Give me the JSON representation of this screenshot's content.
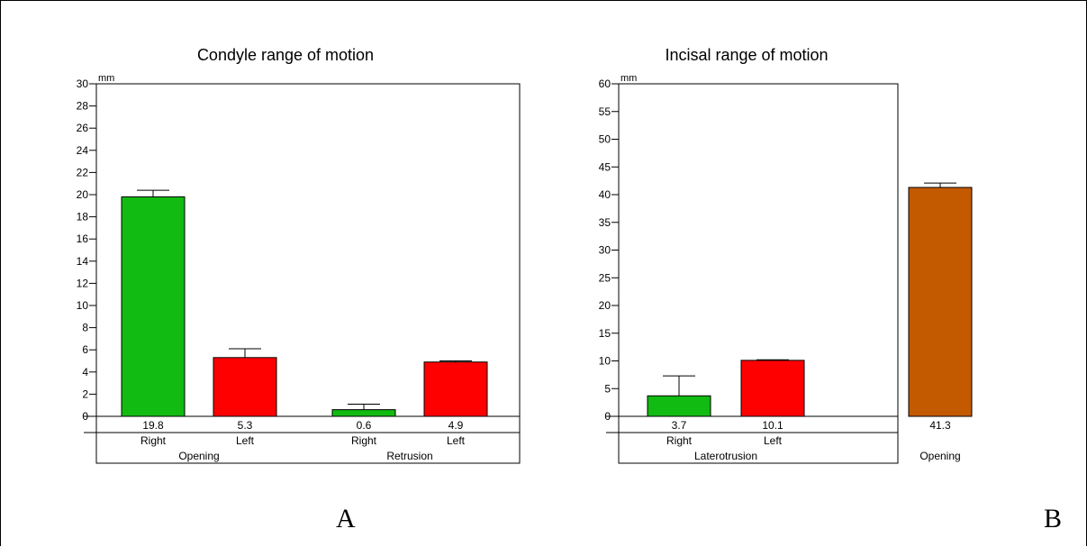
{
  "chart_data": [
    {
      "type": "bar",
      "title": "Condyle range of motion",
      "unit": "mm",
      "ylim": [
        0,
        30
      ],
      "yticks": [
        0,
        2,
        4,
        6,
        8,
        10,
        12,
        14,
        16,
        18,
        20,
        22,
        24,
        26,
        28,
        30
      ],
      "categories": [
        "Right",
        "Left",
        "Right",
        "Left"
      ],
      "groups": [
        {
          "label": "Opening",
          "members": [
            0,
            1
          ]
        },
        {
          "label": "Retrusion",
          "members": [
            2,
            3
          ]
        }
      ],
      "values": [
        19.8,
        5.3,
        0.6,
        4.9
      ],
      "error_plus": [
        0.6,
        0.8,
        0.5,
        0.1
      ],
      "value_labels": [
        "19.8",
        "5.3",
        "0.6",
        "4.9"
      ],
      "colors": [
        "#11bb11",
        "#ff0000",
        "#11bb11",
        "#ff0000"
      ],
      "grid": false
    },
    {
      "type": "bar",
      "title": "Incisal range of motion",
      "unit": "mm",
      "ylim": [
        0,
        60
      ],
      "yticks": [
        0,
        5,
        10,
        15,
        20,
        25,
        30,
        35,
        40,
        45,
        50,
        55,
        60
      ],
      "categories": [
        "Right",
        "Left",
        ""
      ],
      "groups": [
        {
          "label": "Laterotrusion",
          "members": [
            0,
            1
          ]
        },
        {
          "label": "Opening",
          "members": [
            2
          ]
        }
      ],
      "values": [
        3.7,
        10.1,
        41.3
      ],
      "error_plus": [
        3.6,
        0.1,
        0.8
      ],
      "value_labels": [
        "3.7",
        "10.1",
        "41.3"
      ],
      "colors": [
        "#11bb11",
        "#ff0000",
        "#c45a00"
      ],
      "grid": false
    }
  ],
  "panel_labels": [
    "A",
    "B"
  ]
}
